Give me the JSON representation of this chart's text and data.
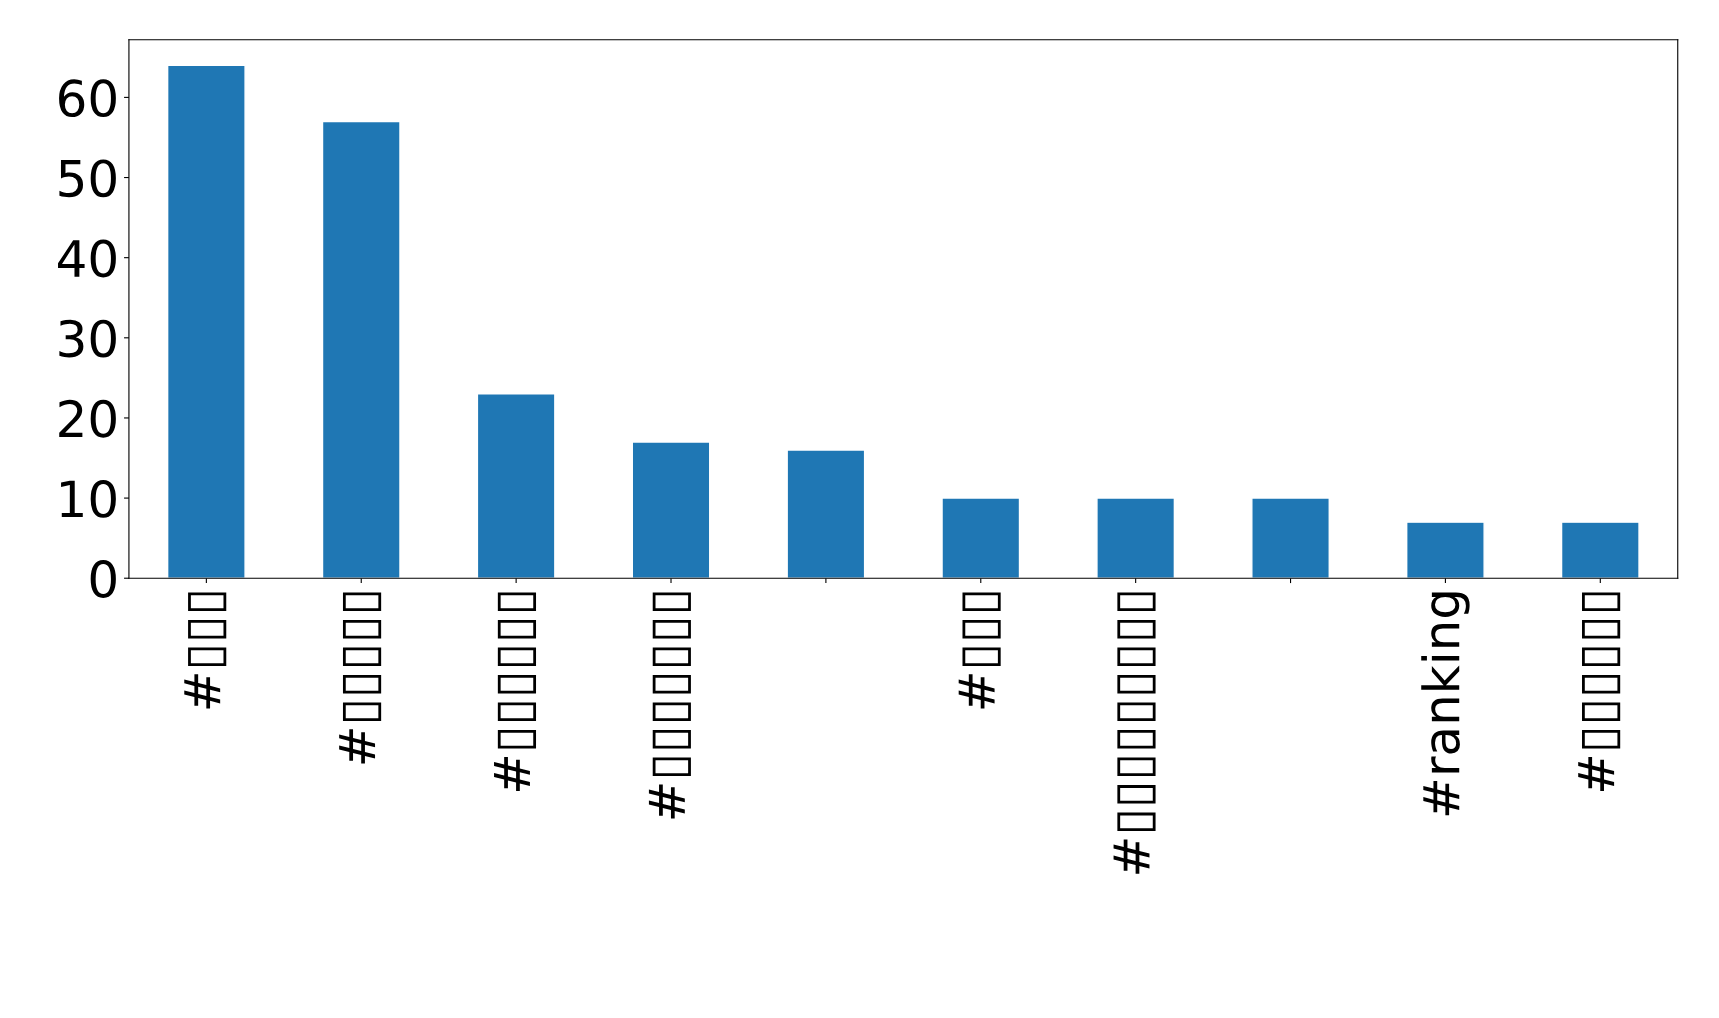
{
  "chart_data": {
    "type": "bar",
    "categories": [
      "#▯▯▯",
      "#▯▯▯▯▯",
      "#▯▯▯▯▯▯",
      "#▯▯▯▯▯▯▯",
      null,
      "#▯▯▯",
      "#▯▯▯▯▯▯▯▯▯",
      null,
      "#ranking",
      "#▯▯▯▯▯▯"
    ],
    "values": [
      64,
      57,
      23,
      17,
      16,
      10,
      10,
      10,
      7,
      7
    ],
    "color": "#1f77b4",
    "ylim": [
      0,
      67.2
    ],
    "yticks": [
      0,
      10,
      20,
      30,
      40,
      50,
      60
    ],
    "grid": false,
    "legend": false
  }
}
